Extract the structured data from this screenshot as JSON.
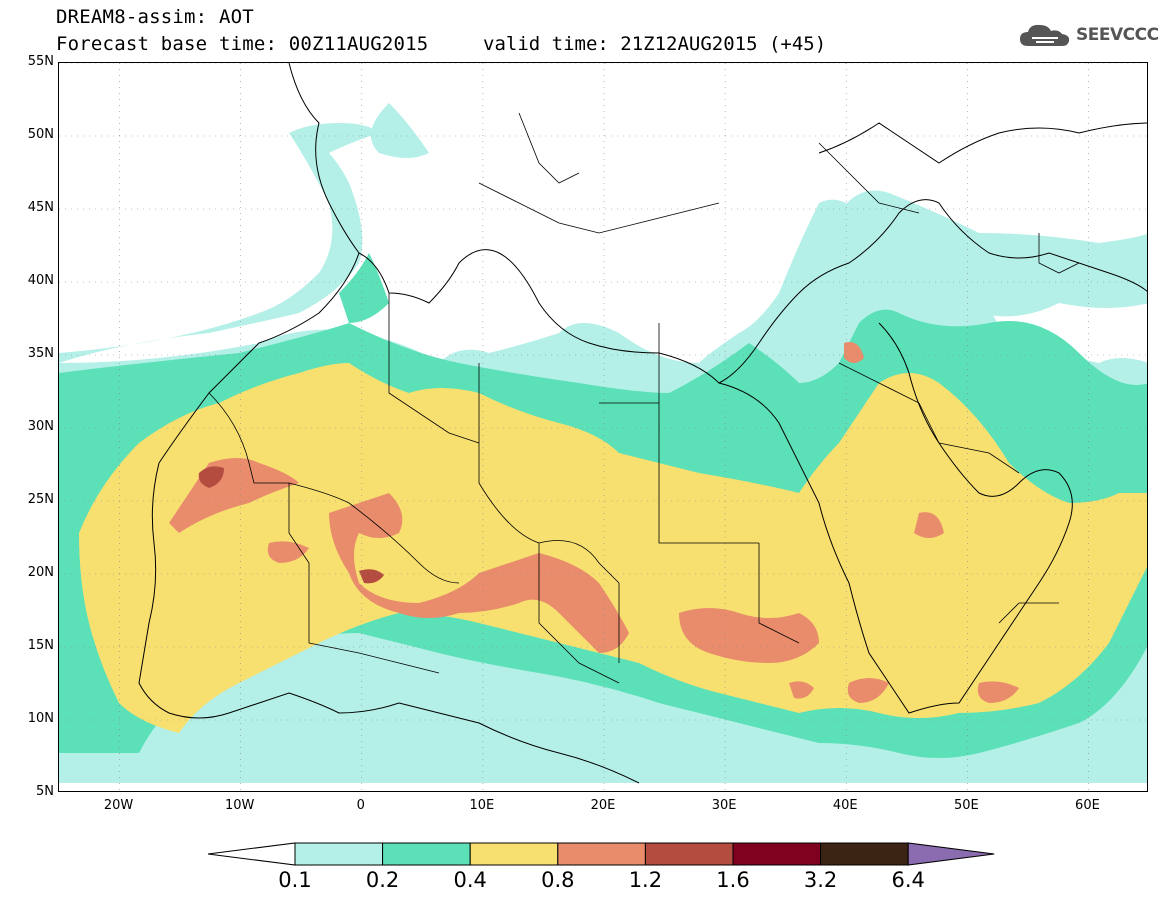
{
  "header": {
    "title": "DREAM8-assim: AOT",
    "base_time": "Forecast base time: 00Z11AUG2015",
    "valid_time": "valid time: 21Z12AUG2015 (+45)",
    "logo_text": "SEEVCCC"
  },
  "axes": {
    "lat_labels": [
      "55N",
      "50N",
      "45N",
      "40N",
      "35N",
      "30N",
      "25N",
      "20N",
      "15N",
      "10N",
      "5N"
    ],
    "lon_labels": [
      "20W",
      "10W",
      "0",
      "10E",
      "20E",
      "30E",
      "40E",
      "50E",
      "60E"
    ],
    "lat_range": [
      5,
      55
    ],
    "lon_range": [
      -25,
      65
    ]
  },
  "colorbar": {
    "labels": [
      "0.1",
      "0.2",
      "0.4",
      "0.8",
      "1.2",
      "1.6",
      "3.2",
      "6.4"
    ],
    "colors": [
      "#ffffff",
      "#b4f0e8",
      "#5ce0b8",
      "#f8e070",
      "#e88c6c",
      "#b44c40",
      "#800020",
      "#3c2414",
      "#8c6cb0"
    ]
  },
  "palette": {
    "c01": "#b4f0e8",
    "c02": "#5ce0b8",
    "c04": "#f8e070",
    "c08": "#e88c6c",
    "c12": "#b44c40"
  }
}
